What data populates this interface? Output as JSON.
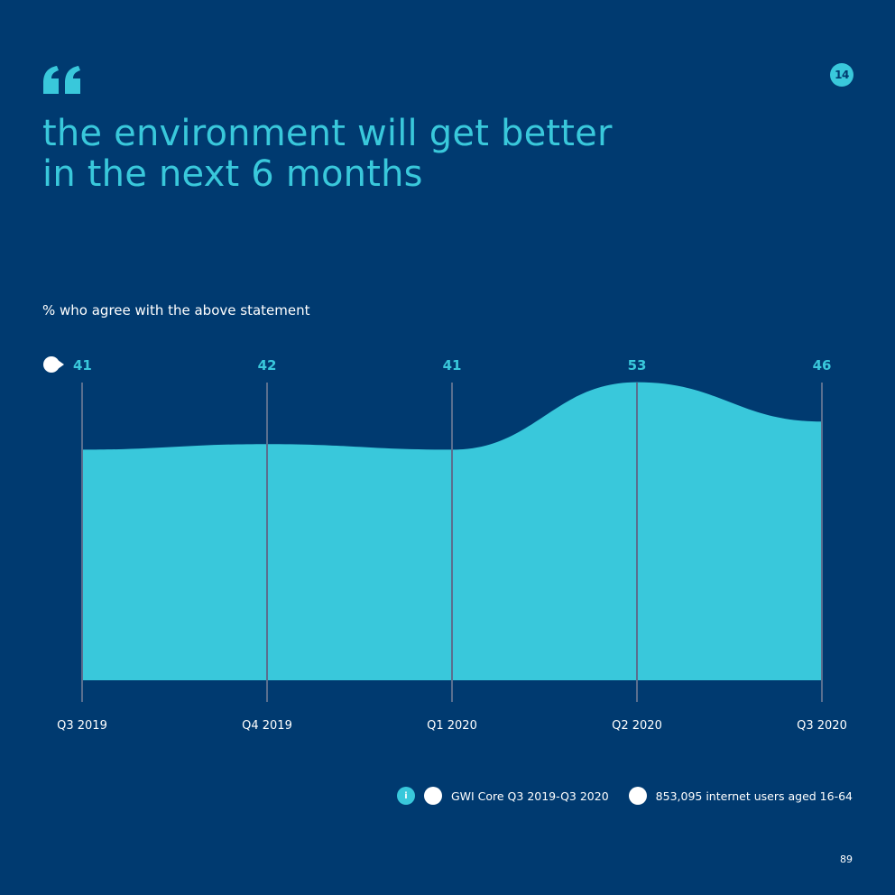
{
  "page": {
    "badge": "14",
    "number": "89"
  },
  "colors": {
    "background": "#003a70",
    "accent": "#39c8db",
    "gridline": "#5a6f8f",
    "text": "#ffffff"
  },
  "headline": {
    "line1": "the environment will get better",
    "line2": "in the next 6 months"
  },
  "chart_data": {
    "type": "area",
    "title": "% who agree with the above statement",
    "categories": [
      "Q3 2019",
      "Q4 2019",
      "Q1 2020",
      "Q2 2020",
      "Q3 2020"
    ],
    "series": [
      {
        "name": "% who agree",
        "values": [
          41,
          42,
          41,
          53,
          46
        ]
      }
    ],
    "ylim": [
      0,
      60
    ],
    "xlabel": "",
    "ylabel": "",
    "grid": "vertical",
    "data_labels": true
  },
  "legend": {
    "info_icon": "i",
    "source": "GWI Core Q3 2019-Q3 2020",
    "base": "853,095 internet users aged 16-64"
  },
  "icons": {
    "quote": "quote-icon",
    "info": "info-icon",
    "source": "source-icon",
    "base": "users-icon",
    "marker": "marker-icon"
  }
}
